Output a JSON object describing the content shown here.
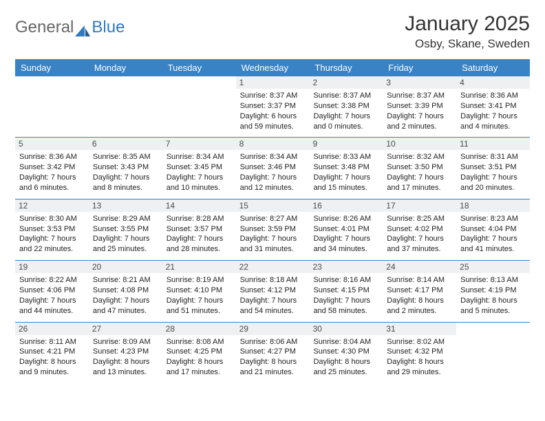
{
  "brand": {
    "part1": "General",
    "part2": "Blue"
  },
  "title": "January 2025",
  "location": "Osby, Skane, Sweden",
  "header_bg": "#3983c5",
  "daynum_bg": "#eef0f1",
  "text_color": "#222222",
  "days_of_week": [
    "Sunday",
    "Monday",
    "Tuesday",
    "Wednesday",
    "Thursday",
    "Friday",
    "Saturday"
  ],
  "weeks": [
    [
      {
        "n": "",
        "sr": "",
        "ss": "",
        "dl": ""
      },
      {
        "n": "",
        "sr": "",
        "ss": "",
        "dl": ""
      },
      {
        "n": "",
        "sr": "",
        "ss": "",
        "dl": ""
      },
      {
        "n": "1",
        "sr": "Sunrise: 8:37 AM",
        "ss": "Sunset: 3:37 PM",
        "dl": "Daylight: 6 hours and 59 minutes."
      },
      {
        "n": "2",
        "sr": "Sunrise: 8:37 AM",
        "ss": "Sunset: 3:38 PM",
        "dl": "Daylight: 7 hours and 0 minutes."
      },
      {
        "n": "3",
        "sr": "Sunrise: 8:37 AM",
        "ss": "Sunset: 3:39 PM",
        "dl": "Daylight: 7 hours and 2 minutes."
      },
      {
        "n": "4",
        "sr": "Sunrise: 8:36 AM",
        "ss": "Sunset: 3:41 PM",
        "dl": "Daylight: 7 hours and 4 minutes."
      }
    ],
    [
      {
        "n": "5",
        "sr": "Sunrise: 8:36 AM",
        "ss": "Sunset: 3:42 PM",
        "dl": "Daylight: 7 hours and 6 minutes."
      },
      {
        "n": "6",
        "sr": "Sunrise: 8:35 AM",
        "ss": "Sunset: 3:43 PM",
        "dl": "Daylight: 7 hours and 8 minutes."
      },
      {
        "n": "7",
        "sr": "Sunrise: 8:34 AM",
        "ss": "Sunset: 3:45 PM",
        "dl": "Daylight: 7 hours and 10 minutes."
      },
      {
        "n": "8",
        "sr": "Sunrise: 8:34 AM",
        "ss": "Sunset: 3:46 PM",
        "dl": "Daylight: 7 hours and 12 minutes."
      },
      {
        "n": "9",
        "sr": "Sunrise: 8:33 AM",
        "ss": "Sunset: 3:48 PM",
        "dl": "Daylight: 7 hours and 15 minutes."
      },
      {
        "n": "10",
        "sr": "Sunrise: 8:32 AM",
        "ss": "Sunset: 3:50 PM",
        "dl": "Daylight: 7 hours and 17 minutes."
      },
      {
        "n": "11",
        "sr": "Sunrise: 8:31 AM",
        "ss": "Sunset: 3:51 PM",
        "dl": "Daylight: 7 hours and 20 minutes."
      }
    ],
    [
      {
        "n": "12",
        "sr": "Sunrise: 8:30 AM",
        "ss": "Sunset: 3:53 PM",
        "dl": "Daylight: 7 hours and 22 minutes."
      },
      {
        "n": "13",
        "sr": "Sunrise: 8:29 AM",
        "ss": "Sunset: 3:55 PM",
        "dl": "Daylight: 7 hours and 25 minutes."
      },
      {
        "n": "14",
        "sr": "Sunrise: 8:28 AM",
        "ss": "Sunset: 3:57 PM",
        "dl": "Daylight: 7 hours and 28 minutes."
      },
      {
        "n": "15",
        "sr": "Sunrise: 8:27 AM",
        "ss": "Sunset: 3:59 PM",
        "dl": "Daylight: 7 hours and 31 minutes."
      },
      {
        "n": "16",
        "sr": "Sunrise: 8:26 AM",
        "ss": "Sunset: 4:01 PM",
        "dl": "Daylight: 7 hours and 34 minutes."
      },
      {
        "n": "17",
        "sr": "Sunrise: 8:25 AM",
        "ss": "Sunset: 4:02 PM",
        "dl": "Daylight: 7 hours and 37 minutes."
      },
      {
        "n": "18",
        "sr": "Sunrise: 8:23 AM",
        "ss": "Sunset: 4:04 PM",
        "dl": "Daylight: 7 hours and 41 minutes."
      }
    ],
    [
      {
        "n": "19",
        "sr": "Sunrise: 8:22 AM",
        "ss": "Sunset: 4:06 PM",
        "dl": "Daylight: 7 hours and 44 minutes."
      },
      {
        "n": "20",
        "sr": "Sunrise: 8:21 AM",
        "ss": "Sunset: 4:08 PM",
        "dl": "Daylight: 7 hours and 47 minutes."
      },
      {
        "n": "21",
        "sr": "Sunrise: 8:19 AM",
        "ss": "Sunset: 4:10 PM",
        "dl": "Daylight: 7 hours and 51 minutes."
      },
      {
        "n": "22",
        "sr": "Sunrise: 8:18 AM",
        "ss": "Sunset: 4:12 PM",
        "dl": "Daylight: 7 hours and 54 minutes."
      },
      {
        "n": "23",
        "sr": "Sunrise: 8:16 AM",
        "ss": "Sunset: 4:15 PM",
        "dl": "Daylight: 7 hours and 58 minutes."
      },
      {
        "n": "24",
        "sr": "Sunrise: 8:14 AM",
        "ss": "Sunset: 4:17 PM",
        "dl": "Daylight: 8 hours and 2 minutes."
      },
      {
        "n": "25",
        "sr": "Sunrise: 8:13 AM",
        "ss": "Sunset: 4:19 PM",
        "dl": "Daylight: 8 hours and 5 minutes."
      }
    ],
    [
      {
        "n": "26",
        "sr": "Sunrise: 8:11 AM",
        "ss": "Sunset: 4:21 PM",
        "dl": "Daylight: 8 hours and 9 minutes."
      },
      {
        "n": "27",
        "sr": "Sunrise: 8:09 AM",
        "ss": "Sunset: 4:23 PM",
        "dl": "Daylight: 8 hours and 13 minutes."
      },
      {
        "n": "28",
        "sr": "Sunrise: 8:08 AM",
        "ss": "Sunset: 4:25 PM",
        "dl": "Daylight: 8 hours and 17 minutes."
      },
      {
        "n": "29",
        "sr": "Sunrise: 8:06 AM",
        "ss": "Sunset: 4:27 PM",
        "dl": "Daylight: 8 hours and 21 minutes."
      },
      {
        "n": "30",
        "sr": "Sunrise: 8:04 AM",
        "ss": "Sunset: 4:30 PM",
        "dl": "Daylight: 8 hours and 25 minutes."
      },
      {
        "n": "31",
        "sr": "Sunrise: 8:02 AM",
        "ss": "Sunset: 4:32 PM",
        "dl": "Daylight: 8 hours and 29 minutes."
      },
      {
        "n": "",
        "sr": "",
        "ss": "",
        "dl": ""
      }
    ]
  ]
}
